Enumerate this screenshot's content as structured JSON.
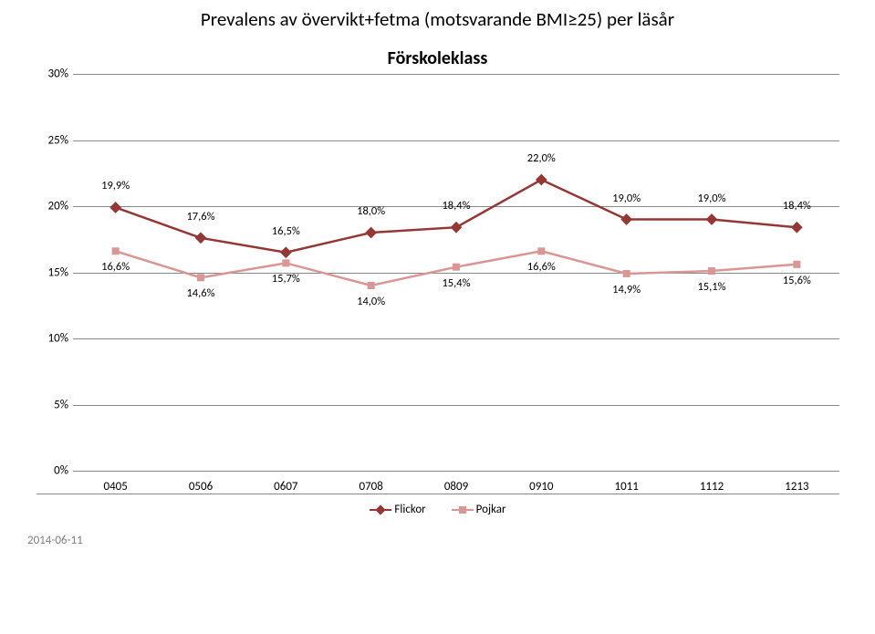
{
  "title": "Prevalens av övervikt+fetma (motsvarande BMI≥25) per läsår",
  "subtitle": "Förskoleklass",
  "footer_date": "2014-06-11",
  "chart": {
    "type": "line",
    "background_color": "#ffffff",
    "grid_color": "#888888",
    "axis_fontsize": 13,
    "datalabel_fontsize": 12.5,
    "y": {
      "min": 0,
      "max": 30,
      "tick_step": 5,
      "ticks": [
        0,
        5,
        10,
        15,
        20,
        25,
        30
      ],
      "labels": [
        "0%",
        "5%",
        "10%",
        "15%",
        "20%",
        "25%",
        "30%"
      ]
    },
    "x": {
      "categories": [
        "0405",
        "0506",
        "0607",
        "0708",
        "0809",
        "0910",
        "1011",
        "1112",
        "1213"
      ]
    },
    "series": [
      {
        "name": "Flickor",
        "marker": "diamond",
        "color": "#953735",
        "line_width": 2.5,
        "marker_size": 9,
        "values": [
          19.9,
          17.6,
          16.5,
          18.0,
          18.4,
          22.0,
          19.0,
          19.0,
          18.4
        ],
        "value_labels": [
          "19,9%",
          "17,6%",
          "16,5%",
          "18,0%",
          "18,4%",
          "22,0%",
          "19,0%",
          "19,0%",
          "18,4%"
        ],
        "label_offset_y": -16
      },
      {
        "name": "Pojkar",
        "marker": "square",
        "color": "#d99694",
        "line_width": 2.5,
        "marker_size": 8,
        "values": [
          16.6,
          14.6,
          15.7,
          14.0,
          15.4,
          16.6,
          14.9,
          15.1,
          15.6
        ],
        "value_labels": [
          "16,6%",
          "14,6%",
          "15,7%",
          "14,0%",
          "15,4%",
          "16,6%",
          "14,9%",
          "15,1%",
          "15,6%"
        ],
        "label_offset_y": 10
      }
    ],
    "legend": {
      "position": "bottom",
      "items": [
        "Flickor",
        "Pojkar"
      ]
    }
  }
}
